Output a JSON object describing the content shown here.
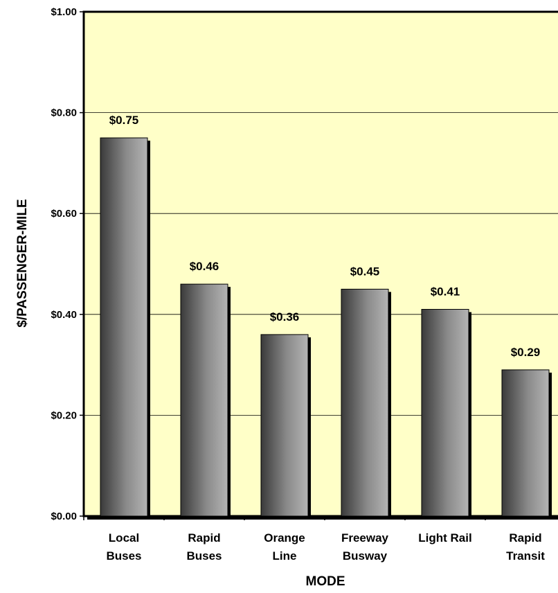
{
  "chart_data": {
    "type": "bar",
    "categories": [
      [
        "Local",
        "Buses"
      ],
      [
        "Rapid",
        "Buses"
      ],
      [
        "Orange",
        "Line"
      ],
      [
        "Freeway",
        "Busway"
      ],
      [
        "Light Rail"
      ],
      [
        "Rapid",
        "Transit"
      ]
    ],
    "values": [
      0.75,
      0.46,
      0.36,
      0.45,
      0.41,
      0.29
    ],
    "data_labels": [
      "$0.75",
      "$0.46",
      "$0.36",
      "$0.45",
      "$0.41",
      "$0.29"
    ],
    "xlabel": "MODE",
    "ylabel": "$/PASSENGER-MILE",
    "ylim": [
      0,
      1
    ],
    "yticks": [
      0,
      0.2,
      0.4,
      0.6,
      0.8,
      1.0
    ],
    "ytick_labels": [
      "$0.00",
      "$0.20",
      "$0.40",
      "$0.60",
      "$0.80",
      "$1.00"
    ],
    "grid": true,
    "legend": "none",
    "colors": {
      "plot_background": "#ffffc8",
      "bar_dark": "#3a3a3a",
      "bar_light": "#b0b0b0",
      "shadow": "#000000",
      "gridline": "#000000"
    }
  }
}
